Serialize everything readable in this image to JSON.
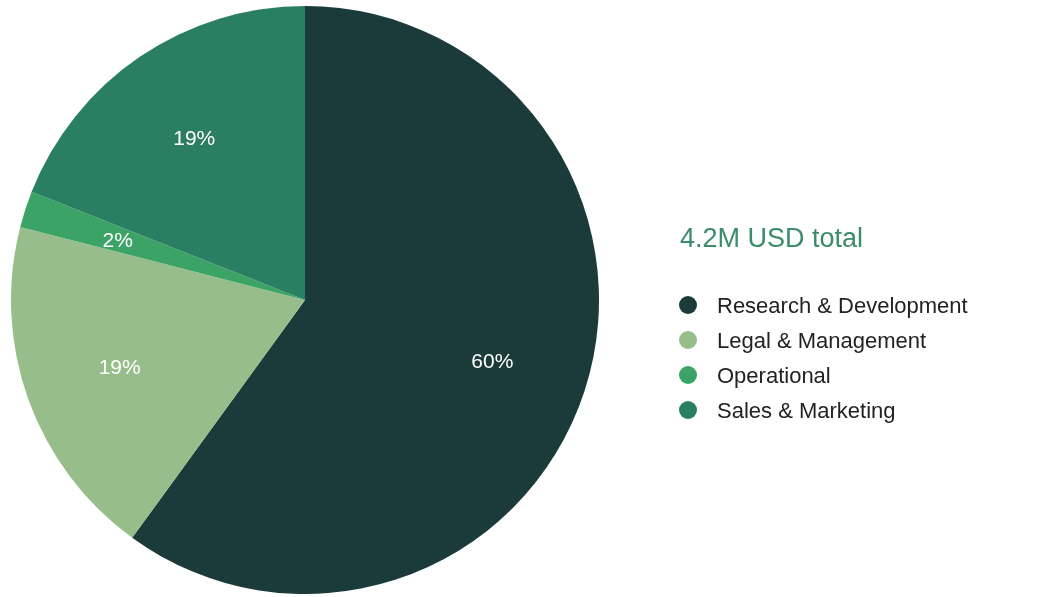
{
  "chart_data": {
    "type": "pie",
    "legend_title": "4.2M USD total",
    "categories": [
      "Research & Development",
      "Legal & Management",
      "Operational",
      "Sales & Marketing"
    ],
    "values": [
      60,
      19,
      2,
      19
    ],
    "colors": [
      "#1b3a3a",
      "#97be8a",
      "#3aa365",
      "#2a7f62"
    ],
    "value_labels": [
      "60%",
      "19%",
      "2%",
      "19%"
    ],
    "legend": "right"
  }
}
